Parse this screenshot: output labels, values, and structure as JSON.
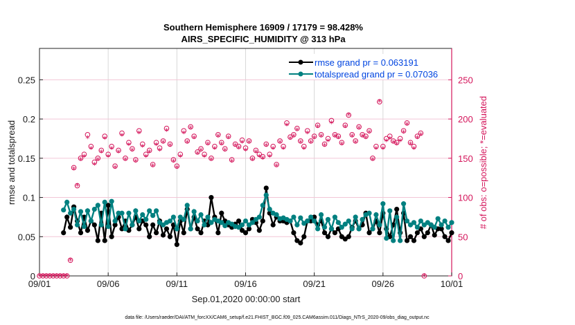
{
  "chart_data": {
    "type": "line",
    "title": "Southern Hemisphere 16909 / 17179 = 98.428%",
    "subtitle": "AIRS_SPECIFIC_HUMIDITY @ 313 hPa",
    "xlabel": "Sep.01,2020 00:00:00 start",
    "ylabel": "rmse and totalspread",
    "y2label": "# of obs: o=possible; *=evaluated",
    "footer": "data file: /Users/raeder/DAI/ATM_forcXX/CAM6_setup/f.e21.FHIST_BGC.f09_025.CAM6assim.011/Diags_NTrS_2020-09/obs_diag_output.nc",
    "x_tick_labels": [
      "09/01",
      "09/06",
      "09/11",
      "09/16",
      "09/21",
      "09/26",
      "10/01"
    ],
    "x_ticks_days": [
      0,
      5,
      10,
      15,
      20,
      25,
      30
    ],
    "xlim_days": [
      0,
      30
    ],
    "ylim": [
      0,
      0.29
    ],
    "y_ticks": [
      0,
      0.05,
      0.1,
      0.15,
      0.2,
      0.25
    ],
    "y_tick_labels": [
      "0",
      "0.05",
      "0.1",
      "0.15",
      "0.2",
      "0.25"
    ],
    "y2lim": [
      0,
      290
    ],
    "y2_ticks": [
      0,
      50,
      100,
      150,
      200,
      250
    ],
    "y2_tick_labels": [
      "0",
      "50",
      "100",
      "150",
      "200",
      "250"
    ],
    "grid": true,
    "legend_position": "top-right",
    "colors": {
      "rmse": "#000000",
      "totalspread": "#008080",
      "obs": "#d4145a",
      "legend_text": "#0044e0"
    },
    "series": [
      {
        "name": "rmse grand pr = 0.063191",
        "key": "rmse",
        "start_day": 1.75,
        "step_days": 0.25,
        "values": [
          0.055,
          0.075,
          0.062,
          0.088,
          0.07,
          0.055,
          0.075,
          0.058,
          0.07,
          0.065,
          0.045,
          0.08,
          0.045,
          0.09,
          0.05,
          0.065,
          0.075,
          0.06,
          0.07,
          0.058,
          0.065,
          0.075,
          0.06,
          0.07,
          0.065,
          0.05,
          0.065,
          0.055,
          0.07,
          0.052,
          0.06,
          0.05,
          0.065,
          0.04,
          0.07,
          0.055,
          0.085,
          0.06,
          0.075,
          0.06,
          0.055,
          0.07,
          0.065,
          0.1,
          0.075,
          0.055,
          0.08,
          0.07,
          0.065,
          0.062,
          0.066,
          0.07,
          0.058,
          0.055,
          0.06,
          0.072,
          0.068,
          0.058,
          0.07,
          0.112,
          0.08,
          0.065,
          0.075,
          0.07,
          0.07,
          0.068,
          0.07,
          0.055,
          0.045,
          0.042,
          0.05,
          0.07,
          0.07,
          0.075,
          0.065,
          0.07,
          0.055,
          0.05,
          0.06,
          0.055,
          0.06,
          0.05,
          0.047,
          0.05,
          0.062,
          0.07,
          0.06,
          0.065,
          0.08,
          0.055,
          0.06,
          0.07,
          0.055,
          0.08,
          0.06,
          0.05,
          0.065,
          0.085,
          0.055,
          0.08,
          0.045,
          0.05,
          0.045,
          0.055,
          0.06,
          0.05,
          0.055,
          0.065,
          0.052,
          0.06,
          0.06,
          0.05,
          0.045,
          0.055
        ]
      },
      {
        "name": "totalspread grand pr = 0.07036",
        "key": "totalspread",
        "start_day": 1.75,
        "step_days": 0.25,
        "values": [
          0.084,
          0.094,
          0.08,
          0.085,
          0.065,
          0.082,
          0.063,
          0.083,
          0.07,
          0.085,
          0.09,
          0.065,
          0.094,
          0.063,
          0.095,
          0.07,
          0.08,
          0.08,
          0.06,
          0.08,
          0.065,
          0.083,
          0.07,
          0.078,
          0.072,
          0.083,
          0.077,
          0.083,
          0.068,
          0.065,
          0.068,
          0.07,
          0.075,
          0.06,
          0.075,
          0.072,
          0.09,
          0.06,
          0.082,
          0.07,
          0.078,
          0.065,
          0.075,
          0.068,
          0.072,
          0.07,
          0.068,
          0.064,
          0.068,
          0.066,
          0.063,
          0.062,
          0.065,
          0.07,
          0.065,
          0.068,
          0.072,
          0.075,
          0.09,
          0.103,
          0.085,
          0.08,
          0.078,
          0.073,
          0.074,
          0.072,
          0.07,
          0.075,
          0.065,
          0.074,
          0.067,
          0.07,
          0.075,
          0.07,
          0.06,
          0.078,
          0.062,
          0.072,
          0.06,
          0.075,
          0.068,
          0.062,
          0.066,
          0.07,
          0.06,
          0.075,
          0.06,
          0.072,
          0.078,
          0.08,
          0.06,
          0.078,
          0.065,
          0.092,
          0.048,
          0.083,
          0.045,
          0.075,
          0.045,
          0.092,
          0.07,
          0.065,
          0.068,
          0.062,
          0.07,
          0.065,
          0.068,
          0.065,
          0.062,
          0.073,
          0.065,
          0.07,
          0.062,
          0.068
        ]
      }
    ],
    "obs_possible": {
      "start_day": 0,
      "step_days": 0.25,
      "values": [
        0,
        0,
        0,
        0,
        0,
        0,
        0,
        0,
        0,
        20,
        138,
        115,
        150,
        155,
        180,
        165,
        145,
        150,
        160,
        178,
        155,
        165,
        140,
        160,
        182,
        150,
        170,
        162,
        148,
        185,
        168,
        155,
        160,
        142,
        170,
        163,
        172,
        188,
        168,
        148,
        140,
        155,
        185,
        172,
        190,
        178,
        158,
        162,
        155,
        170,
        150,
        165,
        180,
        170,
        162,
        178,
        148,
        168,
        165,
        173,
        163,
        172,
        150,
        160,
        155,
        152,
        168,
        155,
        165,
        142,
        172,
        165,
        195,
        177,
        180,
        188,
        172,
        165,
        185,
        172,
        178,
        192,
        180,
        168,
        175,
        198,
        180,
        178,
        170,
        192,
        205,
        180,
        172,
        190,
        180,
        178,
        185,
        150,
        165,
        222,
        165,
        175,
        178,
        172,
        170,
        175,
        185,
        195,
        170,
        165,
        178,
        182,
        0
      ]
    },
    "obs_evaluated": {
      "start_day": 0,
      "step_days": 0.25,
      "values": [
        0,
        0,
        0,
        0,
        0,
        0,
        0,
        0,
        0,
        20,
        136,
        115,
        148,
        152,
        176,
        162,
        142,
        148,
        158,
        175,
        152,
        162,
        138,
        158,
        179,
        148,
        167,
        160,
        146,
        182,
        165,
        152,
        158,
        140,
        167,
        160,
        170,
        185,
        166,
        146,
        138,
        152,
        182,
        170,
        188,
        176,
        156,
        160,
        152,
        168,
        148,
        162,
        178,
        168,
        160,
        176,
        146,
        166,
        163,
        170,
        160,
        170,
        148,
        158,
        152,
        150,
        166,
        152,
        162,
        140,
        170,
        162,
        192,
        175,
        178,
        186,
        170,
        162,
        182,
        170,
        176,
        190,
        178,
        166,
        172,
        195,
        178,
        176,
        168,
        190,
        205,
        178,
        170,
        188,
        178,
        176,
        183,
        148,
        162,
        222,
        162,
        172,
        175,
        170,
        168,
        172,
        183,
        193,
        168,
        162,
        176,
        180,
        0
      ]
    }
  }
}
